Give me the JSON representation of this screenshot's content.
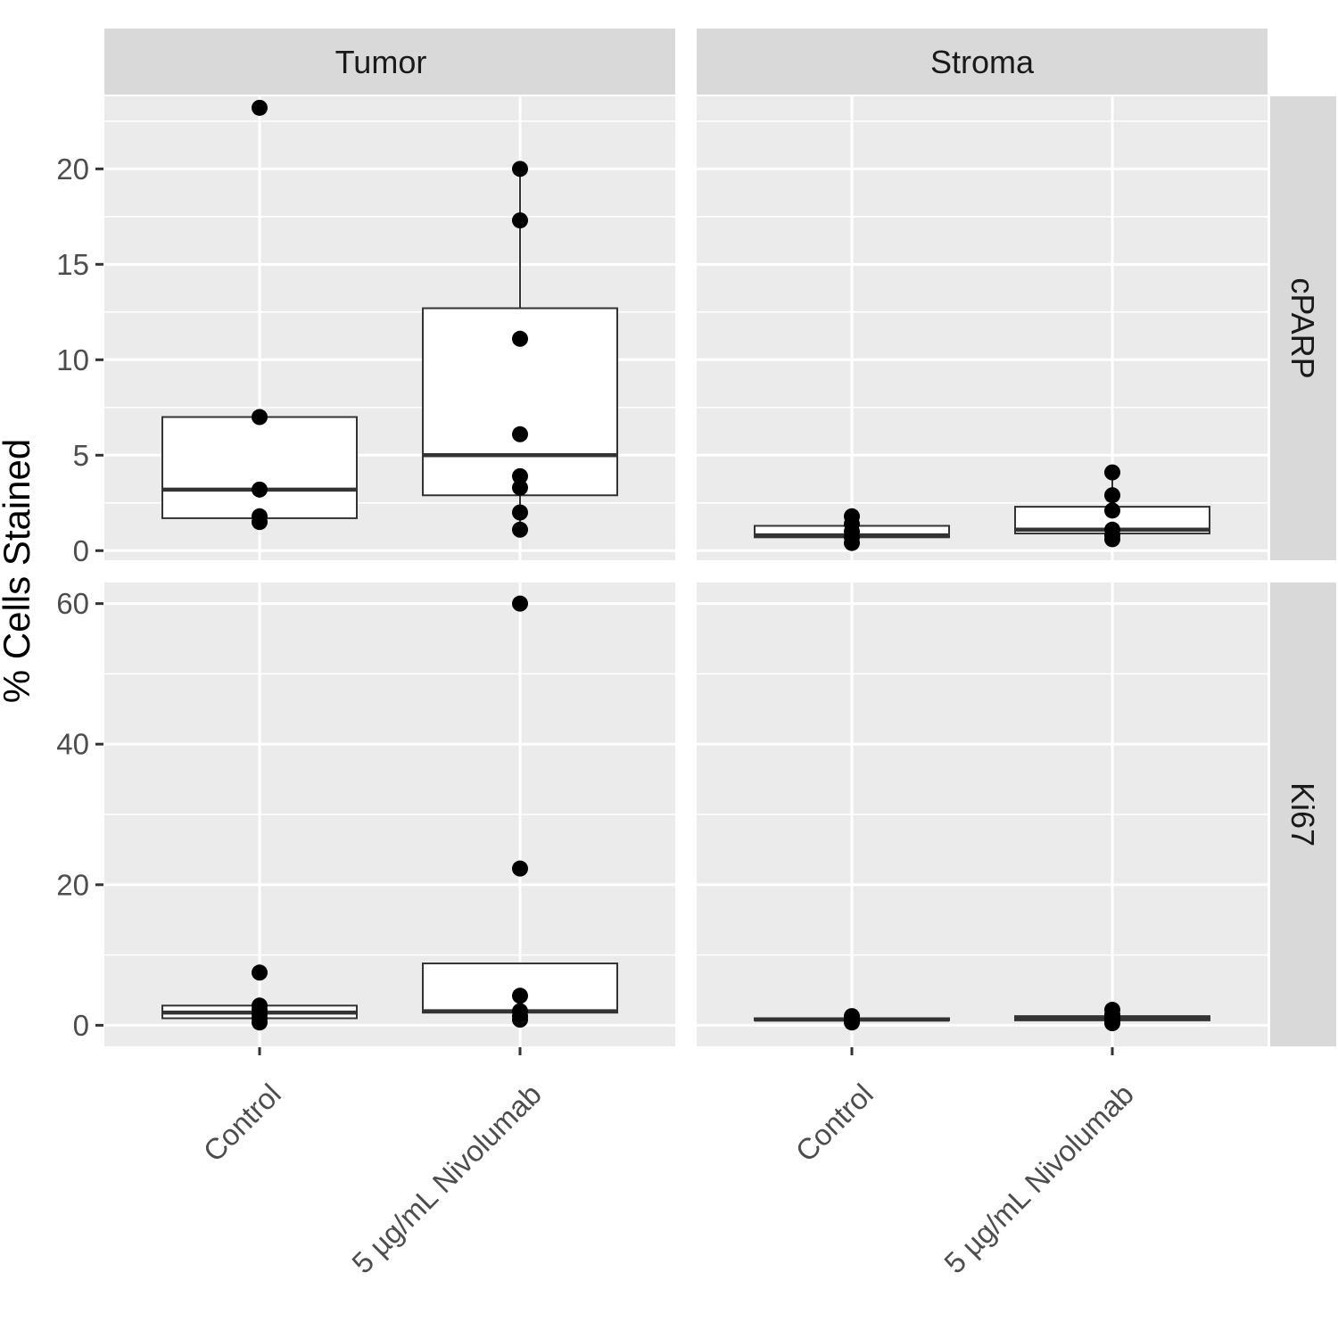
{
  "chart_data": {
    "type": "boxplot",
    "title": "",
    "ylabel": "% Cells Stained",
    "xlabel": "",
    "categories": [
      "Control",
      "5 µg/mL Nivolumab"
    ],
    "columns": [
      "Tumor",
      "Stroma"
    ],
    "rows": [
      {
        "name": "cPARP",
        "ylim": [
          -0.5,
          23.8
        ],
        "yticks": [
          0,
          5,
          10,
          15,
          20
        ],
        "ytick_labels": [
          "0",
          "5",
          "10",
          "15",
          "20"
        ],
        "minor_ticks": [
          2.5,
          7.5,
          12.5,
          17.5,
          22.5
        ]
      },
      {
        "name": "Ki67",
        "ylim": [
          -3,
          63
        ],
        "yticks": [
          0,
          20,
          40,
          60
        ],
        "ytick_labels": [
          "0",
          "20",
          "40",
          "60"
        ],
        "minor_ticks": [
          10,
          30,
          50
        ]
      }
    ],
    "panels": [
      {
        "row": "cPARP",
        "column": "Tumor",
        "boxes": [
          {
            "category": "Control",
            "lower_whisker": 1.5,
            "q1": 1.7,
            "median": 3.2,
            "q3": 7.0,
            "upper_whisker": 7.0,
            "points": [
              23.2,
              7.0,
              3.2,
              1.8,
              1.5
            ],
            "outliers": [
              23.2
            ]
          },
          {
            "category": "5 µg/mL Nivolumab",
            "lower_whisker": 1.1,
            "q1": 2.9,
            "median": 5.0,
            "q3": 12.7,
            "upper_whisker": 20.0,
            "points": [
              20.0,
              17.3,
              11.1,
              6.1,
              3.9,
              3.3,
              2.0,
              1.1
            ],
            "outliers": []
          }
        ]
      },
      {
        "row": "cPARP",
        "column": "Stroma",
        "boxes": [
          {
            "category": "Control",
            "lower_whisker": 0.4,
            "q1": 0.7,
            "median": 0.8,
            "q3": 1.3,
            "upper_whisker": 1.8,
            "points": [
              1.8,
              1.4,
              1.0,
              0.7,
              0.4
            ],
            "outliers": []
          },
          {
            "category": "5 µg/mL Nivolumab",
            "lower_whisker": 0.6,
            "q1": 0.9,
            "median": 1.1,
            "q3": 2.3,
            "upper_whisker": 4.1,
            "points": [
              4.1,
              2.9,
              2.1,
              1.1,
              0.8,
              0.6
            ],
            "outliers": []
          }
        ]
      },
      {
        "row": "Ki67",
        "column": "Tumor",
        "boxes": [
          {
            "category": "Control",
            "lower_whisker": 0.2,
            "q1": 1.0,
            "median": 1.8,
            "q3": 2.8,
            "upper_whisker": 2.8,
            "points": [
              7.5,
              2.8,
              2.2,
              1.6,
              1.0,
              0.4
            ],
            "outliers": [
              7.5
            ]
          },
          {
            "category": "5 µg/mL Nivolumab",
            "lower_whisker": 0.6,
            "q1": 1.8,
            "median": 2.0,
            "q3": 8.8,
            "upper_whisker": 8.8,
            "points": [
              60.0,
              22.3,
              4.2,
              2.0,
              1.3,
              0.8
            ],
            "outliers": [
              60.0,
              22.3
            ]
          }
        ]
      },
      {
        "row": "Ki67",
        "column": "Stroma",
        "boxes": [
          {
            "category": "Control",
            "lower_whisker": 0.3,
            "q1": 0.7,
            "median": 0.8,
            "q3": 1.0,
            "upper_whisker": 1.2,
            "points": [
              1.3,
              0.9,
              0.7,
              0.4
            ],
            "outliers": []
          },
          {
            "category": "5 µg/mL Nivolumab",
            "lower_whisker": 0.4,
            "q1": 0.7,
            "median": 0.9,
            "q3": 1.3,
            "upper_whisker": 2.0,
            "points": [
              2.2,
              1.5,
              1.1,
              0.8,
              0.5,
              0.3
            ],
            "outliers": []
          }
        ]
      }
    ],
    "colors": {
      "panel_background": "#ebebeb",
      "grid": "#ffffff",
      "strip_background": "#d9d9d9",
      "box_fill": "#ffffff",
      "box_stroke": "#333333",
      "point": "#000000",
      "tick_label": "#4d4d4d"
    }
  }
}
